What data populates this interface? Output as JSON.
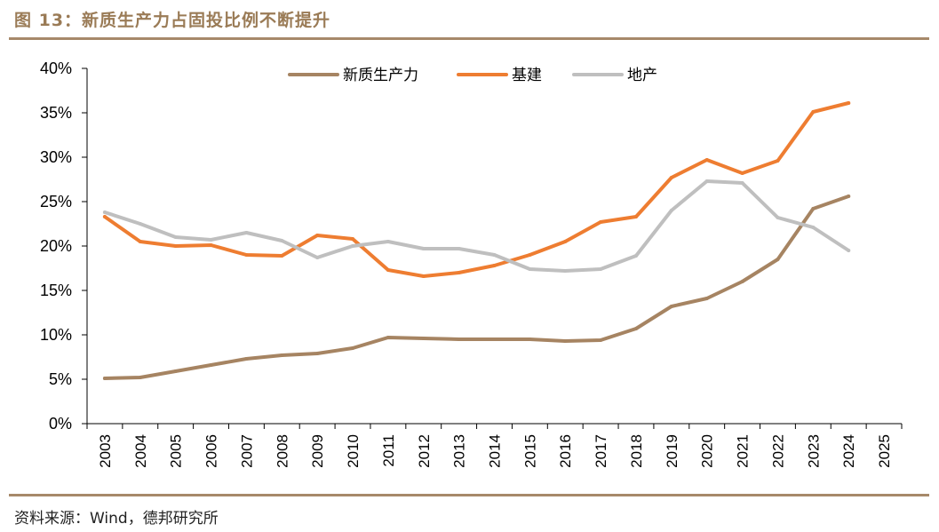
{
  "header": {
    "title": "图 13：新质生产力占固投比例不断提升"
  },
  "footer": {
    "source": "资料来源：Wind，德邦研究所"
  },
  "colors": {
    "frame": "#A7896A",
    "title": "#9A7B56"
  },
  "chart_data": {
    "type": "line",
    "title": "",
    "xlabel": "",
    "ylabel": "",
    "ylim": [
      0,
      40
    ],
    "yticks": [
      0,
      5,
      10,
      15,
      20,
      25,
      30,
      35,
      40
    ],
    "ytick_labels": [
      "0%",
      "5%",
      "10%",
      "15%",
      "20%",
      "25%",
      "30%",
      "35%",
      "40%"
    ],
    "categories": [
      "2003",
      "2004",
      "2005",
      "2006",
      "2007",
      "2008",
      "2009",
      "2010",
      "2011",
      "2012",
      "2013",
      "2014",
      "2015",
      "2016",
      "2017",
      "2018",
      "2019",
      "2020",
      "2021",
      "2022",
      "2023",
      "2024",
      "2025"
    ],
    "legend_position": "top-center",
    "series": [
      {
        "name": "新质生产力",
        "color": "#A68462",
        "values": [
          5.1,
          5.2,
          5.9,
          6.6,
          7.3,
          7.7,
          7.9,
          8.5,
          9.7,
          9.6,
          9.5,
          9.5,
          9.5,
          9.3,
          9.4,
          10.7,
          13.2,
          14.1,
          16.0,
          18.5,
          24.2,
          25.6,
          null
        ]
      },
      {
        "name": "基建",
        "color": "#EE7D31",
        "values": [
          23.3,
          20.5,
          20.0,
          20.1,
          19.0,
          18.9,
          21.2,
          20.8,
          17.3,
          16.6,
          17.0,
          17.8,
          19.0,
          20.5,
          22.7,
          23.3,
          27.7,
          29.7,
          28.2,
          29.6,
          35.1,
          36.1,
          null
        ]
      },
      {
        "name": "地产",
        "color": "#BFBFBF",
        "values": [
          23.8,
          22.5,
          21.0,
          20.7,
          21.5,
          20.6,
          18.7,
          20.0,
          20.5,
          19.7,
          19.7,
          19.0,
          17.4,
          17.2,
          17.4,
          18.9,
          24.0,
          27.3,
          27.1,
          23.2,
          22.1,
          19.5,
          null
        ]
      }
    ]
  }
}
